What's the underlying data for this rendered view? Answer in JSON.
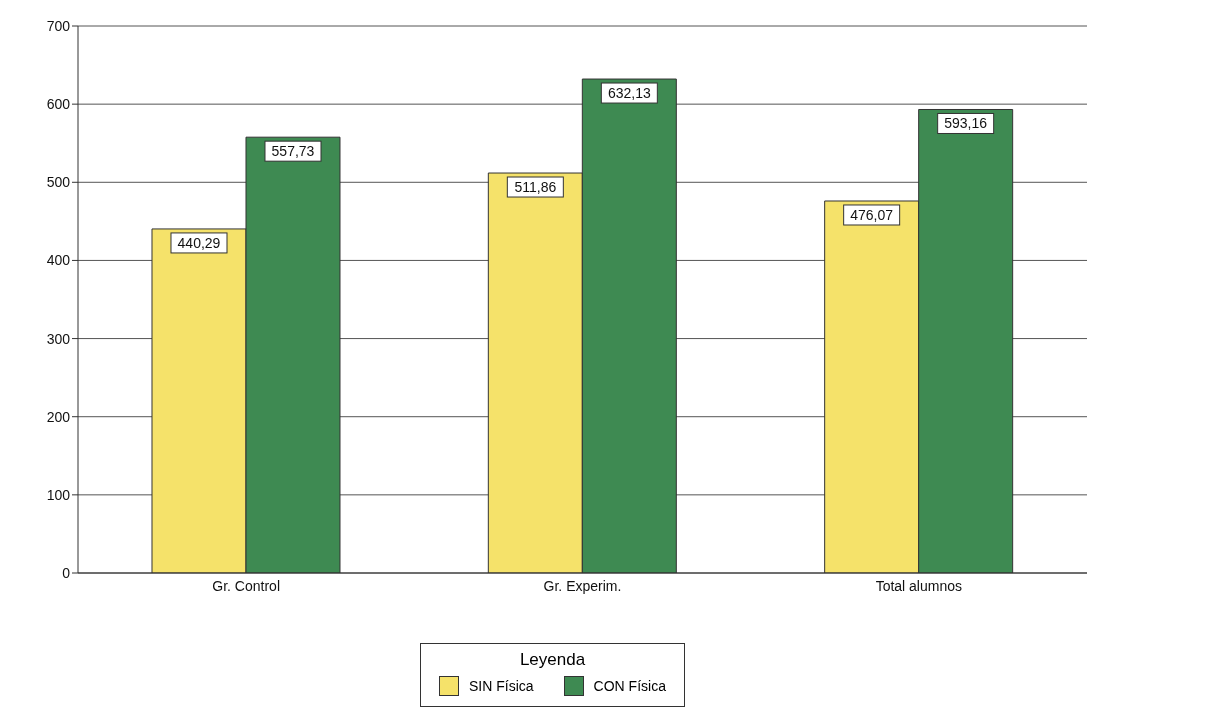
{
  "chart_data": {
    "type": "bar",
    "categories": [
      "Gr. Control",
      "Gr. Experim.",
      "Total alumnos"
    ],
    "series": [
      {
        "name": "SIN Física",
        "color": "#f5e26a",
        "values": [
          440.29,
          511.86,
          476.07
        ],
        "value_labels": [
          "440,29",
          "511,86",
          "476,07"
        ]
      },
      {
        "name": "CON Física",
        "color": "#3e8a52",
        "values": [
          557.73,
          632.13,
          593.16
        ],
        "value_labels": [
          "557,73",
          "632,13",
          "593,16"
        ]
      }
    ],
    "ylim": [
      0,
      700
    ],
    "yticks": [
      0,
      100,
      200,
      300,
      400,
      500,
      600,
      700
    ],
    "grid": "y",
    "legend": "bottom",
    "legend_title": "Leyenda"
  }
}
